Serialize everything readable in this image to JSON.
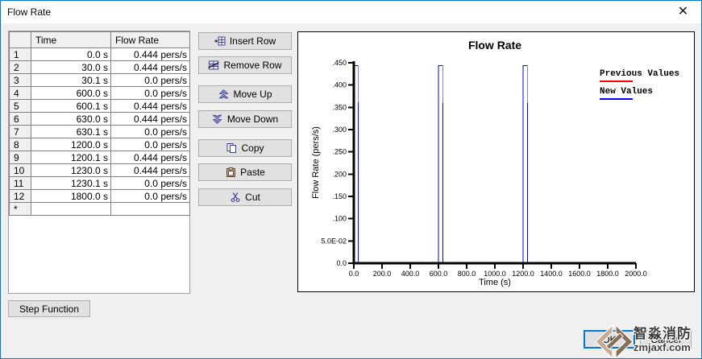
{
  "window": {
    "title": "Flow Rate"
  },
  "colors": {
    "accent": "#0078d7",
    "previous_values": "#ff0000",
    "new_values": "#0000ff"
  },
  "table": {
    "columns": [
      "Time",
      "Flow Rate"
    ],
    "rows": [
      {
        "n": "1",
        "time": "0.0 s",
        "flow": "0.444 pers/s"
      },
      {
        "n": "2",
        "time": "30.0 s",
        "flow": "0.444 pers/s"
      },
      {
        "n": "3",
        "time": "30.1 s",
        "flow": "0.0 pers/s"
      },
      {
        "n": "4",
        "time": "600.0 s",
        "flow": "0.0 pers/s"
      },
      {
        "n": "5",
        "time": "600.1 s",
        "flow": "0.444 pers/s"
      },
      {
        "n": "6",
        "time": "630.0 s",
        "flow": "0.444 pers/s"
      },
      {
        "n": "7",
        "time": "630.1 s",
        "flow": "0.0 pers/s"
      },
      {
        "n": "8",
        "time": "1200.0 s",
        "flow": "0.0 pers/s"
      },
      {
        "n": "9",
        "time": "1200.1 s",
        "flow": "0.444 pers/s"
      },
      {
        "n": "10",
        "time": "1230.0 s",
        "flow": "0.444 pers/s"
      },
      {
        "n": "11",
        "time": "1230.1 s",
        "flow": "0.0 pers/s"
      },
      {
        "n": "12",
        "time": "1800.0 s",
        "flow": "0.0 pers/s"
      },
      {
        "n": "*",
        "time": "",
        "flow": ""
      }
    ]
  },
  "side_buttons": [
    {
      "id": "insert-row",
      "label": "Insert Row",
      "icon": "insert-row-icon"
    },
    {
      "id": "remove-row",
      "label": "Remove Row",
      "icon": "remove-row-icon"
    },
    {
      "id": "move-up",
      "label": "Move Up",
      "icon": "move-up-icon"
    },
    {
      "id": "move-down",
      "label": "Move Down",
      "icon": "move-down-icon"
    },
    {
      "id": "copy",
      "label": "Copy",
      "icon": "copy-icon"
    },
    {
      "id": "paste",
      "label": "Paste",
      "icon": "paste-icon"
    },
    {
      "id": "cut",
      "label": "Cut",
      "icon": "cut-icon"
    }
  ],
  "bottom": {
    "step_function_label": "Step Function",
    "ok_label": "OK",
    "cancel_label": "Cancel"
  },
  "chart_data": {
    "type": "line",
    "title": "Flow Rate",
    "xlabel": "Time (s)",
    "ylabel": "Flow Rate (pers/s)",
    "xlim": [
      0,
      2000
    ],
    "ylim": [
      0,
      0.45
    ],
    "x_ticks": [
      0,
      200,
      400,
      600,
      800,
      1000,
      1200,
      1400,
      1600,
      1800,
      2000
    ],
    "x_tick_labels": [
      "0.0",
      "200.0",
      "400.0",
      "600.0",
      "800.0",
      "1000.0",
      "1200.0",
      "1400.0",
      "1600.0",
      "1800.0",
      "2000.0"
    ],
    "y_ticks": [
      0,
      0.05,
      0.1,
      0.15,
      0.2,
      0.25,
      0.3,
      0.35,
      0.4,
      0.45
    ],
    "y_tick_labels": [
      "0.0",
      "5.0E-02",
      ".100",
      ".150",
      ".200",
      ".250",
      ".300",
      ".350",
      ".400",
      ".450"
    ],
    "grid": false,
    "legend_position": "top-right",
    "legend": [
      {
        "label": "Previous Values",
        "color": "#ff0000"
      },
      {
        "label": "New Values",
        "color": "#0000ff"
      }
    ],
    "series": [
      {
        "name": "Previous Values",
        "color": "#ff0000",
        "points": [
          [
            0,
            0.444
          ],
          [
            30,
            0.444
          ],
          [
            30.1,
            0
          ],
          [
            600,
            0
          ],
          [
            600.1,
            0.444
          ],
          [
            630,
            0.444
          ],
          [
            630.1,
            0
          ],
          [
            1200,
            0
          ],
          [
            1200.1,
            0.444
          ],
          [
            1230,
            0.444
          ],
          [
            1230.1,
            0
          ],
          [
            1800,
            0
          ]
        ]
      },
      {
        "name": "New Values",
        "color": "#0000ff",
        "points": [
          [
            0,
            0.444
          ],
          [
            30,
            0.444
          ],
          [
            30.1,
            0
          ],
          [
            600,
            0
          ],
          [
            600.1,
            0.444
          ],
          [
            630,
            0.444
          ],
          [
            630.1,
            0
          ],
          [
            1200,
            0
          ],
          [
            1200.1,
            0.444
          ],
          [
            1230,
            0.444
          ],
          [
            1230.1,
            0
          ],
          [
            1800,
            0
          ]
        ]
      }
    ]
  },
  "watermark": {
    "name": "智淼消防",
    "site": "zmjaxf.com"
  }
}
